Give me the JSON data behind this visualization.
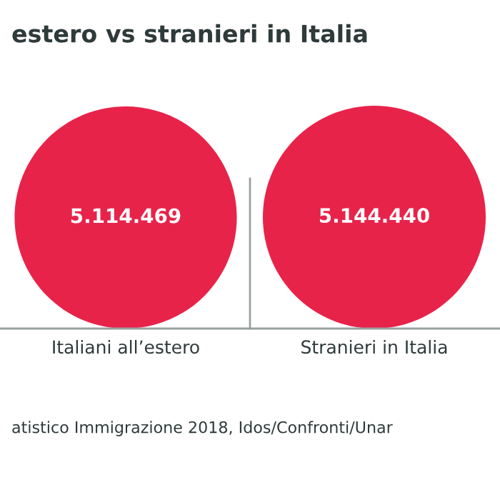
{
  "chart_data": {
    "type": "other",
    "title": "estero vs stranieri in Italia",
    "categories": [
      "Italiani all’estero",
      "Stranieri in Italia"
    ],
    "values": [
      5114469,
      5144440
    ],
    "value_labels": [
      "5.114.469",
      "5.144.440"
    ],
    "color": "#e8234a",
    "annotations": [
      "atistico Immigrazione 2018, Idos/Confronti/Unar"
    ]
  }
}
